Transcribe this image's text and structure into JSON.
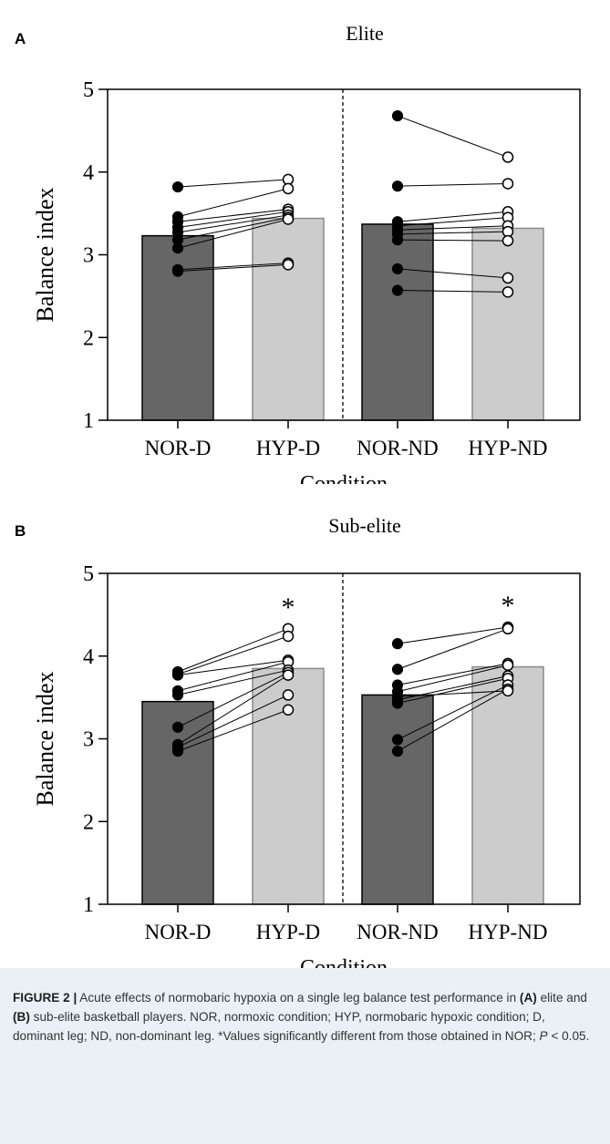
{
  "panels": [
    {
      "letter": "A",
      "title": "Elite",
      "xlabel": "Condition",
      "ylabel": "Balance index",
      "bottom_label": "Condition"
    },
    {
      "letter": "B",
      "title": "Sub-elite",
      "xlabel": "Condition",
      "ylabel": "Balance index",
      "bottom_label": "Condition"
    }
  ],
  "caption": {
    "lead": "FIGURE 2 |",
    "t1": " Acute effects of normobaric hypoxia on a single leg balance test performance in ",
    "a": "(A)",
    "t2": " elite and ",
    "b": "(B)",
    "t3": " sub-elite basketball players. NOR, normoxic condition; HYP, normobaric hypoxic condition; D, dominant leg; ND, non-dominant leg. *Values significantly different from those obtained in NOR; ",
    "p": "P",
    "t4": " < 0.05."
  },
  "chart_data": [
    {
      "type": "bar",
      "title": "Elite",
      "xlabel": "Condition",
      "ylabel": "Balance index",
      "ylim": [
        1,
        5
      ],
      "yticks": [
        1,
        2,
        3,
        4,
        5
      ],
      "categories": [
        "NOR-D",
        "HYP-D",
        "NOR-ND",
        "HYP-ND"
      ],
      "values": [
        3.23,
        3.44,
        3.37,
        3.32
      ],
      "bar_colors": [
        "#666666",
        "#cccccc",
        "#666666",
        "#cccccc"
      ],
      "significant": [
        false,
        false,
        false,
        false
      ],
      "significance_mark": "*",
      "divider_after_index": 1,
      "paired_points": [
        {
          "left": [
            3.82,
            3.46,
            3.4,
            3.33,
            3.27,
            3.18,
            3.08,
            2.82,
            2.8
          ],
          "right": [
            3.91,
            3.8,
            3.55,
            3.52,
            3.48,
            3.45,
            3.43,
            2.9,
            2.88
          ]
        },
        {
          "left": [
            4.68,
            3.83,
            3.4,
            3.35,
            3.3,
            3.25,
            3.18,
            2.83,
            2.57
          ],
          "right": [
            4.18,
            3.86,
            3.52,
            3.45,
            3.35,
            3.28,
            3.17,
            2.72,
            2.55
          ]
        }
      ]
    },
    {
      "type": "bar",
      "title": "Sub-elite",
      "xlabel": "Condition",
      "ylabel": "Balance index",
      "ylim": [
        1,
        5
      ],
      "yticks": [
        1,
        2,
        3,
        4,
        5
      ],
      "categories": [
        "NOR-D",
        "HYP-D",
        "NOR-ND",
        "HYP-ND"
      ],
      "values": [
        3.45,
        3.85,
        3.53,
        3.87
      ],
      "bar_colors": [
        "#666666",
        "#cccccc",
        "#666666",
        "#cccccc"
      ],
      "significant": [
        false,
        true,
        false,
        true
      ],
      "significance_mark": "*",
      "divider_after_index": 1,
      "paired_points": [
        {
          "left": [
            3.81,
            3.78,
            3.77,
            3.58,
            3.53,
            3.14,
            2.93,
            2.9,
            2.85
          ],
          "right": [
            4.33,
            4.24,
            3.95,
            3.93,
            3.83,
            3.8,
            3.77,
            3.53,
            3.35
          ]
        },
        {
          "left": [
            4.15,
            3.84,
            3.65,
            3.57,
            3.47,
            3.43,
            2.99,
            2.85,
            3.51
          ],
          "right": [
            4.35,
            4.33,
            3.91,
            3.89,
            3.76,
            3.73,
            3.65,
            3.6,
            3.58
          ]
        }
      ]
    }
  ]
}
